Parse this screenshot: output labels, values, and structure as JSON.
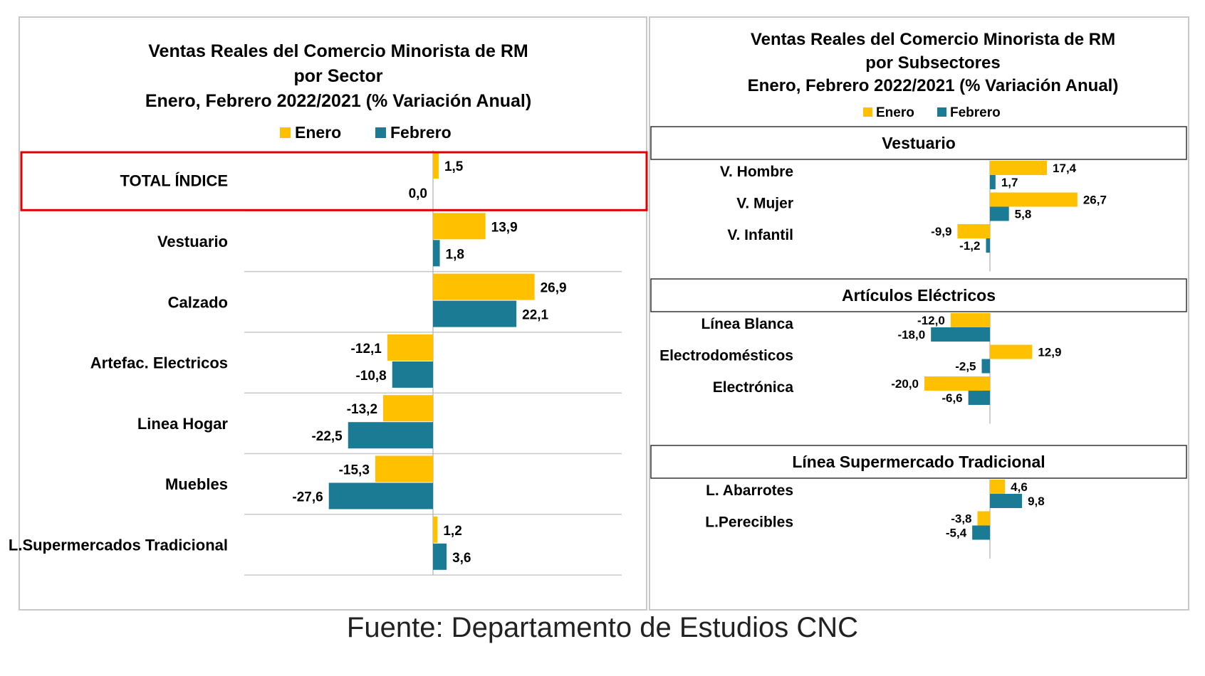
{
  "source": "Fuente: Departamento de Estudios CNC",
  "colors": {
    "enero": "#FFC000",
    "febrero": "#1B7A94",
    "highlight": "#E00000"
  },
  "chart_data": [
    {
      "type": "bar",
      "orientation": "horizontal",
      "title_lines": [
        "Ventas Reales del Comercio Minorista de RM",
        "por Sector",
        "Enero, Febrero 2022/2021 (% Variación Anual)"
      ],
      "legend": [
        "Enero",
        "Febrero"
      ],
      "legend_position": "top",
      "highlighted_category": "TOTAL ÍNDICE",
      "categories": [
        "TOTAL ÍNDICE",
        "Vestuario",
        "Calzado",
        "Artefac. Electricos",
        "Linea Hogar",
        "Muebles",
        "L.Supermercados Tradicional"
      ],
      "series": [
        {
          "name": "Enero",
          "values": [
            1.5,
            13.9,
            26.9,
            -12.1,
            -13.2,
            -15.3,
            1.2
          ],
          "labels": [
            "1,5",
            "13,9",
            "26,9",
            "-12,1",
            "-13,2",
            "-15,3",
            "1,2"
          ]
        },
        {
          "name": "Febrero",
          "values": [
            0.0,
            1.8,
            22.1,
            -10.8,
            -22.5,
            -27.6,
            3.6
          ],
          "labels": [
            "0,0",
            "1,8",
            "22,1",
            "-10,8",
            "-22,5",
            "-27,6",
            "3,6"
          ]
        }
      ]
    },
    {
      "type": "bar",
      "orientation": "horizontal",
      "title_lines": [
        "Ventas Reales del Comercio Minorista de RM",
        "por Subsectores",
        "Enero, Febrero 2022/2021 (% Variación Anual)"
      ],
      "legend": [
        "Enero",
        "Febrero"
      ],
      "legend_position": "top",
      "groups": [
        {
          "name": "Vestuario",
          "categories": [
            "V. Hombre",
            "V. Mujer",
            "V. Infantil"
          ],
          "series": [
            {
              "name": "Enero",
              "values": [
                17.4,
                26.7,
                -9.9
              ],
              "labels": [
                "17,4",
                "26,7",
                "-9,9"
              ]
            },
            {
              "name": "Febrero",
              "values": [
                1.7,
                5.8,
                -1.2
              ],
              "labels": [
                "1,7",
                "5,8",
                "-1,2"
              ]
            }
          ]
        },
        {
          "name": "Artículos Eléctricos",
          "categories": [
            "Línea Blanca",
            "Electrodomésticos",
            "Electrónica"
          ],
          "series": [
            {
              "name": "Enero",
              "values": [
                -12.0,
                12.9,
                -20.0
              ],
              "labels": [
                "-12,0",
                "12,9",
                "-20,0"
              ]
            },
            {
              "name": "Febrero",
              "values": [
                -18.0,
                -2.5,
                -6.6
              ],
              "labels": [
                "-18,0",
                "-2,5",
                "-6,6"
              ]
            }
          ]
        },
        {
          "name": "Línea Supermercado Tradicional",
          "categories": [
            "L. Abarrotes",
            "L.Perecibles"
          ],
          "series": [
            {
              "name": "Enero",
              "values": [
                4.6,
                -3.8
              ],
              "labels": [
                "4,6",
                "-3,8"
              ]
            },
            {
              "name": "Febrero",
              "values": [
                9.8,
                -5.4
              ],
              "labels": [
                "9,8",
                "-5,4"
              ]
            }
          ]
        }
      ]
    }
  ]
}
